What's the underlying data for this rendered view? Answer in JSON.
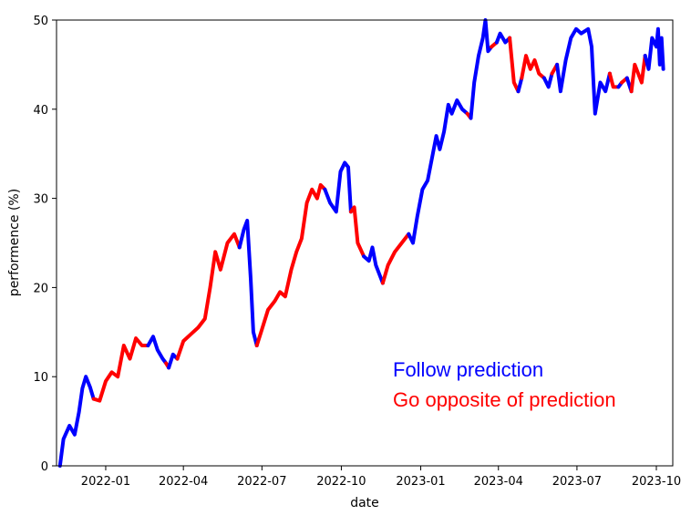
{
  "chart_data": {
    "type": "line",
    "title": "",
    "xlabel": "date",
    "ylabel": "performence (%)",
    "x_range": [
      "2021-11-05",
      "2023-10-20"
    ],
    "ylim": [
      0,
      50
    ],
    "grid": false,
    "x_ticks": [
      "2022-01",
      "2022-04",
      "2022-07",
      "2022-10",
      "2023-01",
      "2023-04",
      "2023-07",
      "2023-10"
    ],
    "x_tick_dates": [
      "2022-01-01",
      "2022-04-01",
      "2022-07-01",
      "2022-10-01",
      "2023-01-01",
      "2023-04-01",
      "2023-07-01",
      "2023-10-01"
    ],
    "y_ticks": [
      "0",
      "10",
      "20",
      "30",
      "40",
      "50"
    ],
    "y_tick_values": [
      0,
      10,
      20,
      30,
      40,
      50
    ],
    "segment_colors": {
      "follow": "#0000ff",
      "opposite": "#ff0000"
    },
    "annotations": [
      {
        "text": "Follow prediction",
        "color": "#0000ff"
      },
      {
        "text": "Go opposite of prediction",
        "color": "#ff0000"
      }
    ],
    "series": [
      {
        "color_key": "follow",
        "points": [
          [
            "2021-11-09",
            0
          ],
          [
            "2021-11-13",
            3
          ],
          [
            "2021-11-20",
            4.5
          ],
          [
            "2021-11-26",
            3.5
          ],
          [
            "2021-12-01",
            6
          ],
          [
            "2021-12-05",
            8.7
          ],
          [
            "2021-12-09",
            10
          ],
          [
            "2021-12-14",
            8.8
          ],
          [
            "2021-12-18",
            7.5
          ]
        ]
      },
      {
        "color_key": "opposite",
        "points": [
          [
            "2021-12-18",
            7.5
          ],
          [
            "2021-12-25",
            7.3
          ],
          [
            "2022-01-01",
            9.5
          ],
          [
            "2022-01-08",
            10.5
          ],
          [
            "2022-01-15",
            10
          ],
          [
            "2022-01-22",
            13.5
          ],
          [
            "2022-01-29",
            12
          ],
          [
            "2022-02-05",
            14.3
          ],
          [
            "2022-02-12",
            13.5
          ],
          [
            "2022-02-19",
            13.5
          ]
        ]
      },
      {
        "color_key": "follow",
        "points": [
          [
            "2022-02-19",
            13.5
          ],
          [
            "2022-02-25",
            14.5
          ],
          [
            "2022-03-02",
            13
          ],
          [
            "2022-03-08",
            12
          ],
          [
            "2022-03-12",
            11.5
          ]
        ]
      },
      {
        "color_key": "opposite",
        "points": [
          [
            "2022-03-12",
            11.5
          ],
          [
            "2022-03-15",
            11
          ]
        ]
      },
      {
        "color_key": "follow",
        "points": [
          [
            "2022-03-15",
            11
          ],
          [
            "2022-03-20",
            12.5
          ],
          [
            "2022-03-25",
            12
          ]
        ]
      },
      {
        "color_key": "opposite",
        "points": [
          [
            "2022-03-25",
            12
          ],
          [
            "2022-04-01",
            14
          ],
          [
            "2022-04-10",
            14.8
          ],
          [
            "2022-04-18",
            15.5
          ],
          [
            "2022-04-26",
            16.5
          ],
          [
            "2022-05-02",
            20
          ],
          [
            "2022-05-08",
            24
          ],
          [
            "2022-05-14",
            22
          ],
          [
            "2022-05-22",
            25
          ],
          [
            "2022-05-30",
            26
          ],
          [
            "2022-06-05",
            24.5
          ]
        ]
      },
      {
        "color_key": "follow",
        "points": [
          [
            "2022-06-05",
            24.5
          ],
          [
            "2022-06-10",
            26.5
          ],
          [
            "2022-06-14",
            27.5
          ],
          [
            "2022-06-18",
            21
          ],
          [
            "2022-06-21",
            15
          ],
          [
            "2022-06-25",
            13.5
          ]
        ]
      },
      {
        "color_key": "opposite",
        "points": [
          [
            "2022-06-25",
            13.5
          ],
          [
            "2022-06-30",
            15
          ],
          [
            "2022-07-08",
            17.5
          ],
          [
            "2022-07-16",
            18.5
          ],
          [
            "2022-07-22",
            19.5
          ],
          [
            "2022-07-28",
            19
          ],
          [
            "2022-08-04",
            22
          ],
          [
            "2022-08-10",
            24
          ],
          [
            "2022-08-16",
            25.5
          ],
          [
            "2022-08-22",
            29.5
          ],
          [
            "2022-08-28",
            31
          ],
          [
            "2022-09-03",
            30
          ],
          [
            "2022-09-07",
            31.5
          ],
          [
            "2022-09-12",
            31
          ]
        ]
      },
      {
        "color_key": "follow",
        "points": [
          [
            "2022-09-12",
            31
          ],
          [
            "2022-09-18",
            29.5
          ],
          [
            "2022-09-25",
            28.5
          ],
          [
            "2022-09-30",
            33
          ],
          [
            "2022-10-05",
            34
          ],
          [
            "2022-10-09",
            33.5
          ],
          [
            "2022-10-12",
            28.5
          ]
        ]
      },
      {
        "color_key": "opposite",
        "points": [
          [
            "2022-10-12",
            28.5
          ],
          [
            "2022-10-16",
            29
          ],
          [
            "2022-10-20",
            25
          ],
          [
            "2022-10-27",
            23.5
          ]
        ]
      },
      {
        "color_key": "follow",
        "points": [
          [
            "2022-10-27",
            23.5
          ],
          [
            "2022-11-02",
            23
          ],
          [
            "2022-11-06",
            24.5
          ],
          [
            "2022-11-10",
            22.5
          ],
          [
            "2022-11-14",
            21.5
          ],
          [
            "2022-11-18",
            20.5
          ]
        ]
      },
      {
        "color_key": "opposite",
        "points": [
          [
            "2022-11-18",
            20.5
          ],
          [
            "2022-11-24",
            22.5
          ],
          [
            "2022-12-02",
            24
          ],
          [
            "2022-12-10",
            25
          ],
          [
            "2022-12-18",
            26
          ]
        ]
      },
      {
        "color_key": "follow",
        "points": [
          [
            "2022-12-18",
            26
          ],
          [
            "2022-12-23",
            25
          ],
          [
            "2022-12-28",
            28
          ],
          [
            "2023-01-03",
            31
          ],
          [
            "2023-01-09",
            32
          ],
          [
            "2023-01-15",
            35
          ],
          [
            "2023-01-19",
            37
          ],
          [
            "2023-01-23",
            35.5
          ],
          [
            "2023-01-28",
            37.5
          ],
          [
            "2023-02-02",
            40.5
          ],
          [
            "2023-02-06",
            39.5
          ],
          [
            "2023-02-12",
            41
          ],
          [
            "2023-02-18",
            40
          ],
          [
            "2023-02-24",
            39.5
          ]
        ]
      },
      {
        "color_key": "opposite",
        "points": [
          [
            "2023-02-24",
            39.5
          ],
          [
            "2023-02-28",
            39
          ]
        ]
      },
      {
        "color_key": "follow",
        "points": [
          [
            "2023-02-28",
            39
          ],
          [
            "2023-03-04",
            43
          ],
          [
            "2023-03-09",
            46
          ],
          [
            "2023-03-14",
            48
          ],
          [
            "2023-03-17",
            50
          ],
          [
            "2023-03-20",
            46.5
          ],
          [
            "2023-03-24",
            47
          ]
        ]
      },
      {
        "color_key": "opposite",
        "points": [
          [
            "2023-03-24",
            47
          ],
          [
            "2023-03-30",
            47.5
          ]
        ]
      },
      {
        "color_key": "follow",
        "points": [
          [
            "2023-03-30",
            47.5
          ],
          [
            "2023-04-03",
            48.5
          ],
          [
            "2023-04-09",
            47.5
          ],
          [
            "2023-04-14",
            48
          ]
        ]
      },
      {
        "color_key": "opposite",
        "points": [
          [
            "2023-04-14",
            48
          ],
          [
            "2023-04-19",
            43
          ],
          [
            "2023-04-24",
            42
          ]
        ]
      },
      {
        "color_key": "follow",
        "points": [
          [
            "2023-04-24",
            42
          ],
          [
            "2023-04-28",
            43.5
          ]
        ]
      },
      {
        "color_key": "opposite",
        "points": [
          [
            "2023-04-28",
            43.5
          ],
          [
            "2023-05-03",
            46
          ],
          [
            "2023-05-08",
            44.5
          ],
          [
            "2023-05-13",
            45.5
          ],
          [
            "2023-05-18",
            44
          ],
          [
            "2023-05-24",
            43.5
          ]
        ]
      },
      {
        "color_key": "follow",
        "points": [
          [
            "2023-05-24",
            43.5
          ],
          [
            "2023-05-29",
            42.5
          ],
          [
            "2023-06-02",
            44
          ]
        ]
      },
      {
        "color_key": "opposite",
        "points": [
          [
            "2023-06-02",
            44
          ],
          [
            "2023-06-08",
            45
          ]
        ]
      },
      {
        "color_key": "follow",
        "points": [
          [
            "2023-06-08",
            45
          ],
          [
            "2023-06-12",
            42
          ],
          [
            "2023-06-18",
            45.5
          ],
          [
            "2023-06-24",
            48
          ],
          [
            "2023-06-30",
            49
          ],
          [
            "2023-07-06",
            48.5
          ],
          [
            "2023-07-14",
            49
          ],
          [
            "2023-07-18",
            47
          ],
          [
            "2023-07-22",
            39.5
          ],
          [
            "2023-07-28",
            43
          ],
          [
            "2023-08-03",
            42
          ],
          [
            "2023-08-08",
            44
          ]
        ]
      },
      {
        "color_key": "opposite",
        "points": [
          [
            "2023-08-08",
            44
          ],
          [
            "2023-08-12",
            42.5
          ],
          [
            "2023-08-18",
            42.5
          ]
        ]
      },
      {
        "color_key": "follow",
        "points": [
          [
            "2023-08-18",
            42.5
          ],
          [
            "2023-08-22",
            43
          ]
        ]
      },
      {
        "color_key": "opposite",
        "points": [
          [
            "2023-08-22",
            43
          ],
          [
            "2023-08-28",
            43.5
          ]
        ]
      },
      {
        "color_key": "follow",
        "points": [
          [
            "2023-08-28",
            43.5
          ],
          [
            "2023-09-02",
            42
          ]
        ]
      },
      {
        "color_key": "opposite",
        "points": [
          [
            "2023-09-02",
            42
          ],
          [
            "2023-09-06",
            45
          ],
          [
            "2023-09-10",
            44
          ],
          [
            "2023-09-14",
            43
          ],
          [
            "2023-09-18",
            46
          ]
        ]
      },
      {
        "color_key": "follow",
        "points": [
          [
            "2023-09-18",
            46
          ],
          [
            "2023-09-22",
            44.5
          ],
          [
            "2023-09-26",
            48
          ],
          [
            "2023-10-01",
            47
          ],
          [
            "2023-10-03",
            49
          ],
          [
            "2023-10-05",
            45
          ],
          [
            "2023-10-07",
            48
          ],
          [
            "2023-10-09",
            44.5
          ]
        ]
      }
    ]
  }
}
